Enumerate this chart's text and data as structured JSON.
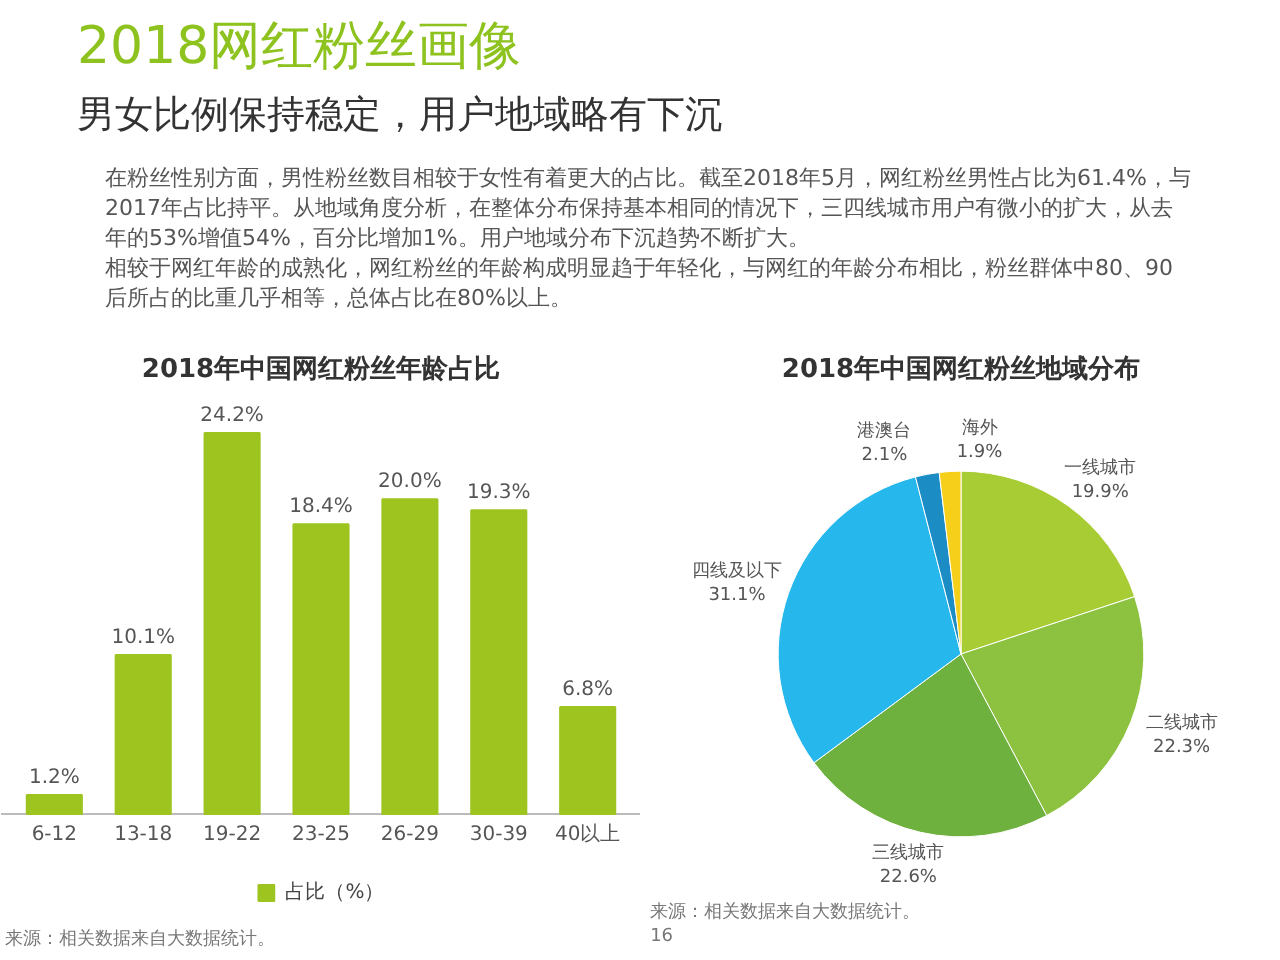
{
  "chart_data": [
    {
      "type": "other",
      "title": "2018网红粉丝画像",
      "subtitle": "男女比例保持稳定，用户地域略有下沉",
      "annotations": [
        "在粉丝性别方面，男性粉丝数目相较于女性有着更大的占比。截至2018年5月，网红粉丝男性占比为61.4%，与2017年占比持平。从地域角度分析，在整体分布保持基本相同的情况下，三四线城市用户有微小的扩大，从去年的53%增值54%，百分比增加1%。用户地域分布下沉趋势不断扩大。",
        "相较于网红年龄的成熟化，网红粉丝的年龄构成明显趋于年轻化，与网红的年龄分布相比，粉丝群体中80、90后所占的比重几乎相等，总体占比在80%以上。"
      ]
    },
    {
      "type": "bar",
      "title": "2018年中国网红粉丝年龄占比",
      "categories": [
        "6-12",
        "13-18",
        "19-22",
        "23-25",
        "26-29",
        "30-39",
        "40以上"
      ],
      "series": [
        {
          "name": "占比（%）",
          "color": "#9dc41f",
          "values": [
            1.2,
            10.1,
            24.2,
            18.4,
            20.0,
            19.3,
            6.8
          ],
          "value_labels": [
            "1.2%",
            "10.1%",
            "24.2%",
            "18.4%",
            "20.0%",
            "19.3%",
            "6.8%"
          ]
        }
      ],
      "legend": "bottom",
      "annotations": [
        "来源：相关数据来自大数据统计。"
      ]
    },
    {
      "type": "pie",
      "title": "2018年中国网红粉丝地域分布",
      "categories": [
        "一线城市",
        "二线城市",
        "三线城市",
        "四线及以下",
        "港澳台",
        "海外"
      ],
      "values": [
        19.9,
        22.3,
        22.6,
        31.1,
        2.1,
        1.9
      ],
      "colors": [
        "#a8cc34",
        "#8cc23f",
        "#6eb13f",
        "#26b7ec",
        "#1b8cc4",
        "#f5cf1a"
      ],
      "value_labels": [
        "19.9%",
        "22.3%",
        "22.6%",
        "31.1%",
        "2.1%",
        "1.9%"
      ],
      "annotations": [
        "来源：相关数据来自大数据统计。",
        "16"
      ]
    }
  ]
}
